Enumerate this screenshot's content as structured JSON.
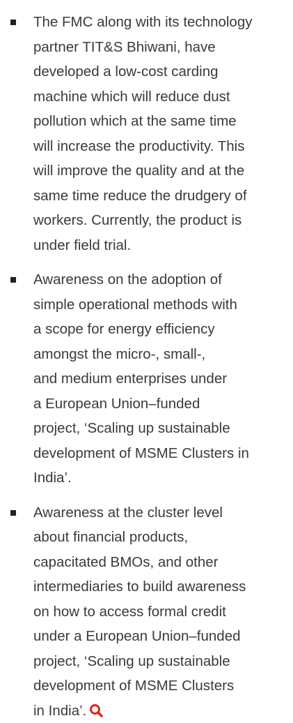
{
  "items": [
    {
      "lines": [
        "The FMC along with its technology",
        "partner TIT&S Bhiwani, have",
        "developed a low-cost carding",
        "machine which will reduce dust",
        "pollution which at the same time",
        "will increase the productivity. This",
        "will improve the quality and at the",
        "same time reduce the drudgery of",
        "workers. Currently, the product is",
        "under field trial."
      ]
    },
    {
      "lines": [
        "Awareness on the adoption of",
        "simple operational methods with",
        "a scope for energy efficiency",
        "amongst the micro-, small-,",
        "and medium enterprises under",
        "a European Union–funded",
        "project, ‘Scaling up sustainable",
        "development of MSME Clusters in",
        "India’."
      ]
    },
    {
      "lines": [
        "Awareness at the cluster level",
        "about financial products,",
        "capacitated BMOs, and other",
        "intermediaries to build awareness",
        "on how to access formal credit",
        "under a European Union–funded",
        "project, ‘Scaling up sustainable",
        "development of MSME Clusters",
        "in India’."
      ]
    }
  ]
}
